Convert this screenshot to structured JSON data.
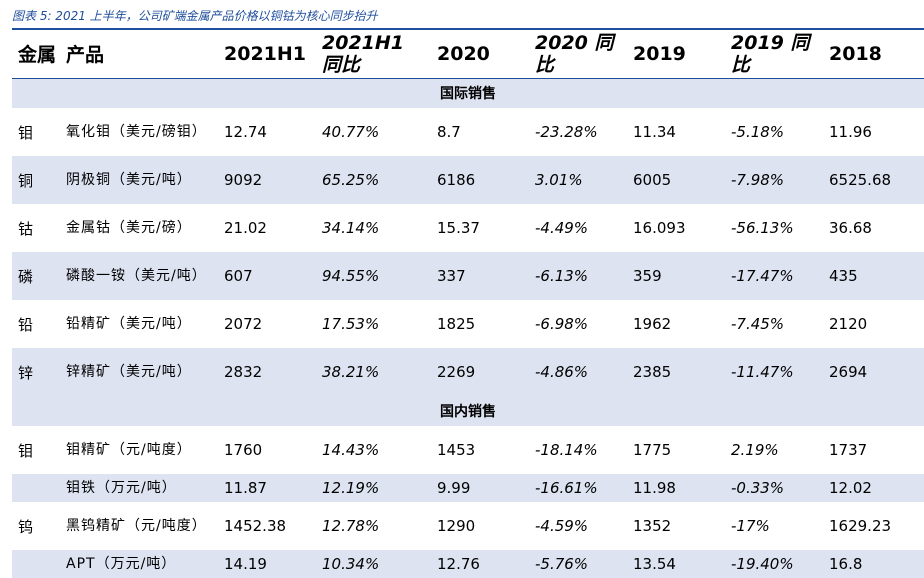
{
  "caption": "图表 5:  2021 上半年，公司矿端金属产品价格以铜钴为核心同步抬升",
  "header": {
    "metal": "金属",
    "product": "产品",
    "h1_2021": "2021H1",
    "h1_2021_yoy_l1": "2021H1",
    "h1_2021_yoy_l2": "同比",
    "y2020": "2020",
    "y2020_yoy_l1": "2020  同",
    "y2020_yoy_l2": "比",
    "y2019": "2019",
    "y2019_yoy_l1": "2019  同",
    "y2019_yoy_l2": "比",
    "y2018": "2018"
  },
  "sections": {
    "international": "国际销售",
    "domestic": "国内销售"
  },
  "rows": [
    {
      "metal": "钼",
      "product": "氧化钼（美元/磅钼）",
      "h1": "12.74",
      "h1_yoy": "40.77%",
      "y2020": "8.7",
      "y2020_yoy": "-23.28%",
      "y2019": "11.34",
      "y2019_yoy": "-5.18%",
      "y2018": "11.96"
    },
    {
      "metal": "铜",
      "product": "阴极铜（美元/吨）",
      "h1": "9092",
      "h1_yoy": "65.25%",
      "y2020": "6186",
      "y2020_yoy": "3.01%",
      "y2019": "6005",
      "y2019_yoy": "-7.98%",
      "y2018": "6525.68"
    },
    {
      "metal": "钴",
      "product": "金属钴（美元/磅）",
      "h1": "21.02",
      "h1_yoy": "34.14%",
      "y2020": "15.37",
      "y2020_yoy": "-4.49%",
      "y2019": "16.093",
      "y2019_yoy": "-56.13%",
      "y2018": "36.68"
    },
    {
      "metal": "磷",
      "product": "磷酸一铵（美元/吨）",
      "h1": "607",
      "h1_yoy": "94.55%",
      "y2020": "337",
      "y2020_yoy": "-6.13%",
      "y2019": "359",
      "y2019_yoy": "-17.47%",
      "y2018": "435"
    },
    {
      "metal": "铅",
      "product": "铅精矿（美元/吨）",
      "h1": "2072",
      "h1_yoy": "17.53%",
      "y2020": "1825",
      "y2020_yoy": "-6.98%",
      "y2019": "1962",
      "y2019_yoy": "-7.45%",
      "y2018": "2120"
    },
    {
      "metal": "锌",
      "product": "锌精矿（美元/吨）",
      "h1": "2832",
      "h1_yoy": "38.21%",
      "y2020": "2269",
      "y2020_yoy": "-4.86%",
      "y2019": "2385",
      "y2019_yoy": "-11.47%",
      "y2018": "2694"
    },
    {
      "metal": "钼",
      "product": "钼精矿（元/吨度）",
      "h1": "1760",
      "h1_yoy": "14.43%",
      "y2020": "1453",
      "y2020_yoy": "-18.14%",
      "y2019": "1775",
      "y2019_yoy": "2.19%",
      "y2018": "1737"
    },
    {
      "metal": "",
      "product": "钼铁（万元/吨）",
      "h1": "11.87",
      "h1_yoy": "12.19%",
      "y2020": "9.99",
      "y2020_yoy": "-16.61%",
      "y2019": "11.98",
      "y2019_yoy": "-0.33%",
      "y2018": "12.02"
    },
    {
      "metal": "钨",
      "product": "黑钨精矿（元/吨度）",
      "h1": "1452.38",
      "h1_yoy": "12.78%",
      "y2020": "1290",
      "y2020_yoy": "-4.59%",
      "y2019": "1352",
      "y2019_yoy": "-17%",
      "y2018": "1629.23"
    },
    {
      "metal": "",
      "product": "APT（万元/吨）",
      "h1": "14.19",
      "h1_yoy": "10.34%",
      "y2020": "12.76",
      "y2020_yoy": "-5.76%",
      "y2019": "13.54",
      "y2019_yoy": "-19.40%",
      "y2018": "16.8"
    }
  ]
}
